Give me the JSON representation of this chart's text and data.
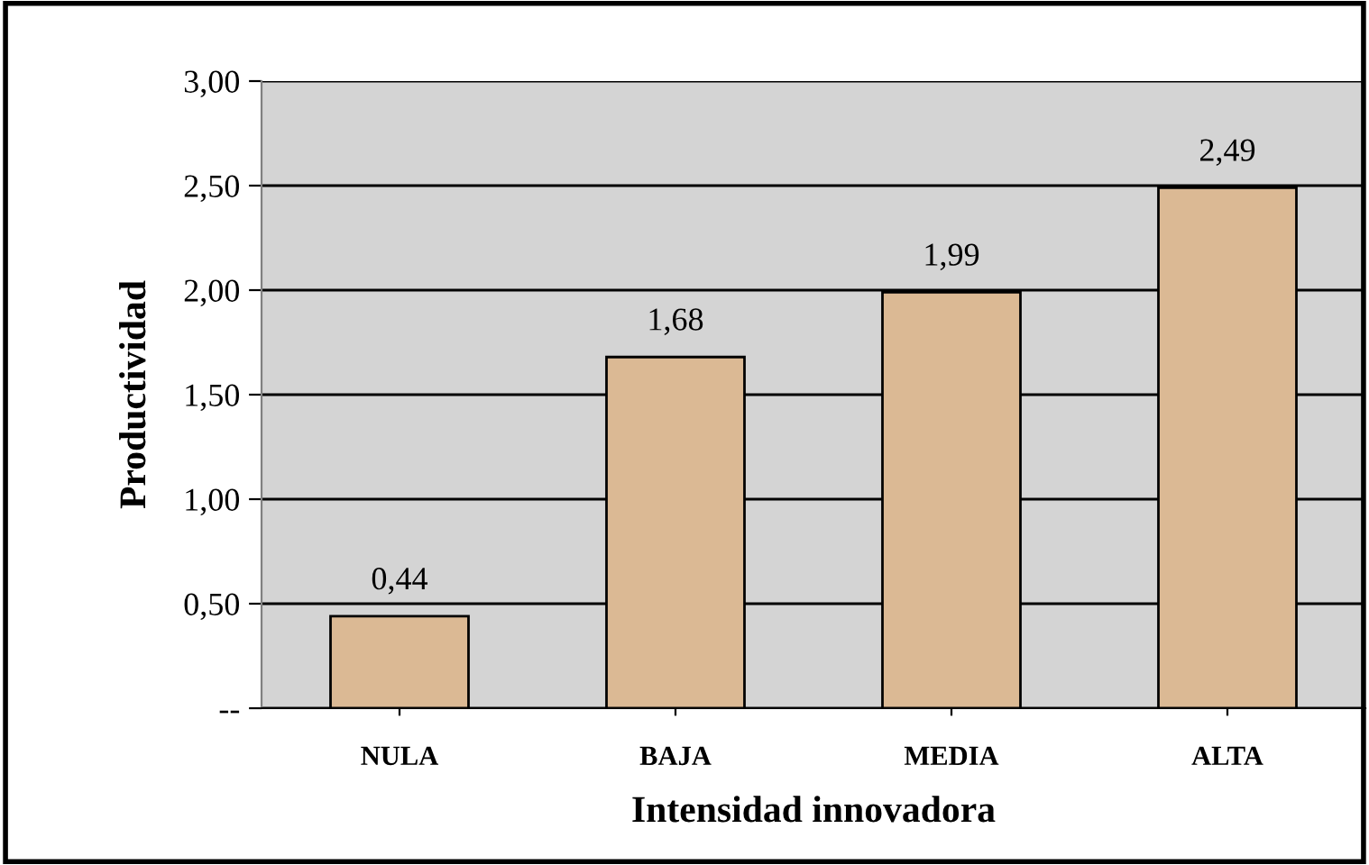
{
  "chart_data": {
    "type": "bar",
    "xlabel": "Intensidad innovadora",
    "ylabel": "Productividad",
    "categories": [
      "NULA",
      "BAJA",
      "MEDIA",
      "ALTA"
    ],
    "values": [
      0.44,
      1.68,
      1.99,
      2.49
    ],
    "value_labels": [
      "0,44",
      "1,68",
      "1,99",
      "2,49"
    ],
    "color": "#dbb994",
    "ylim": [
      0,
      3
    ],
    "yticks": [
      {
        "value": 0,
        "label": "--"
      },
      {
        "value": 0.5,
        "label": "0,50"
      },
      {
        "value": 1,
        "label": "1,00"
      },
      {
        "value": 1.5,
        "label": "1,50"
      },
      {
        "value": 2,
        "label": "2,00"
      },
      {
        "value": 2.5,
        "label": "2,50"
      },
      {
        "value": 3,
        "label": "3,00"
      }
    ],
    "grid": "y"
  }
}
